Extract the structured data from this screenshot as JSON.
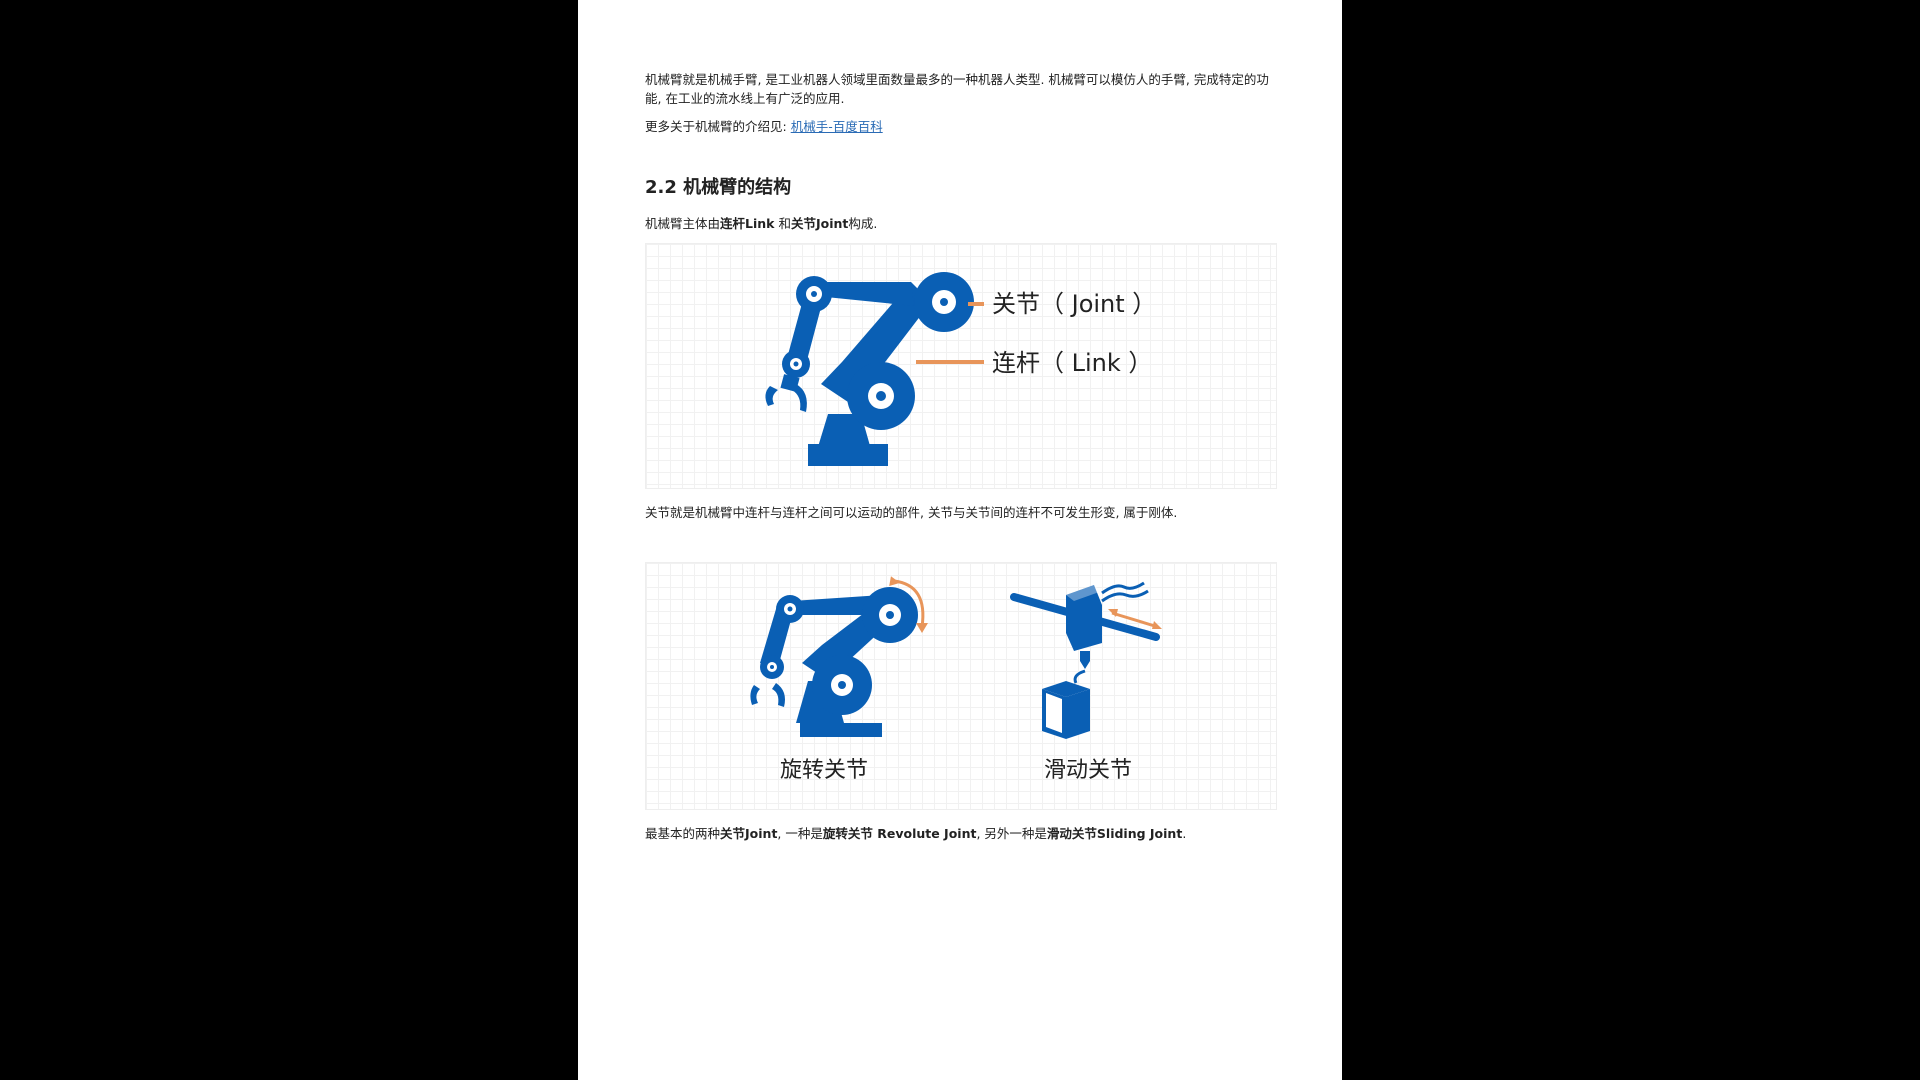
{
  "intro": {
    "paragraph": "机械臂就是机械手臂, 是工业机器人领域里面数量最多的一种机器人类型. 机械臂可以模仿人的手臂, 完成特定的功能, 在工业的流水线上有广泛的应用.",
    "more_prefix": "更多关于机械臂的介绍见: ",
    "more_link": "机械手-百度百科"
  },
  "section": {
    "heading": "2.2 机械臂的结构",
    "composition_prefix": "机械臂主体由",
    "composition_link_term": "连杆Link",
    "composition_middle": " 和",
    "composition_joint_term": "关节Joint",
    "composition_suffix": "构成."
  },
  "figure1": {
    "joint_label": "关节（ Joint ）",
    "link_label": "连杆（ Link ）"
  },
  "joint_description": "关节就是机械臂中连杆与连杆之间可以运动的部件, 关节与关节间的连杆不可发生形变, 属于刚体.",
  "figure2": {
    "revolute_label": "旋转关节",
    "sliding_label": "滑动关节"
  },
  "joint_types": {
    "prefix": "最基本的两种",
    "joint_term": "关节Joint",
    "middle1": ", 一种是",
    "revolute_term": "旋转关节 Revolute Joint",
    "middle2": ", 另外一种是",
    "sliding_term": "滑动关节Sliding Joint",
    "suffix": "."
  },
  "colors": {
    "robot_blue": "#0a5fb4",
    "accent_orange": "#e8955a",
    "link_blue": "#2a6bb5"
  }
}
